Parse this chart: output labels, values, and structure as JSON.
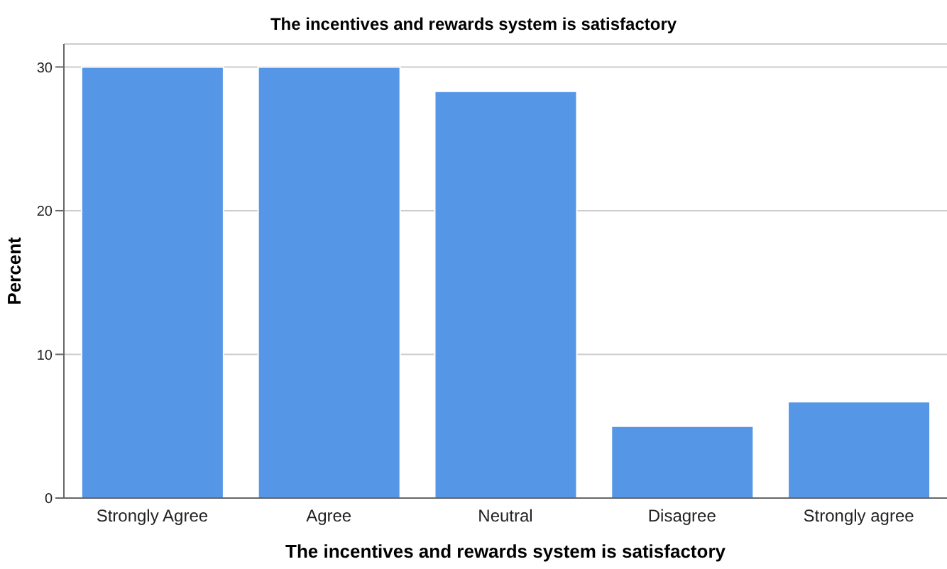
{
  "chart_data": {
    "type": "bar",
    "title": "The incentives and rewards system is satisfactory",
    "xlabel": "The incentives and rewards system is satisfactory",
    "ylabel": "Percent",
    "categories": [
      "Strongly Agree",
      "Agree",
      "Neutral",
      "Disagree",
      "Strongly agree"
    ],
    "values": [
      30,
      30,
      28.3,
      5,
      6.7
    ],
    "color": "#5596e6",
    "ylim": [
      0,
      31.6
    ],
    "yticks": [
      0,
      10,
      20,
      30
    ],
    "grid": "y"
  }
}
